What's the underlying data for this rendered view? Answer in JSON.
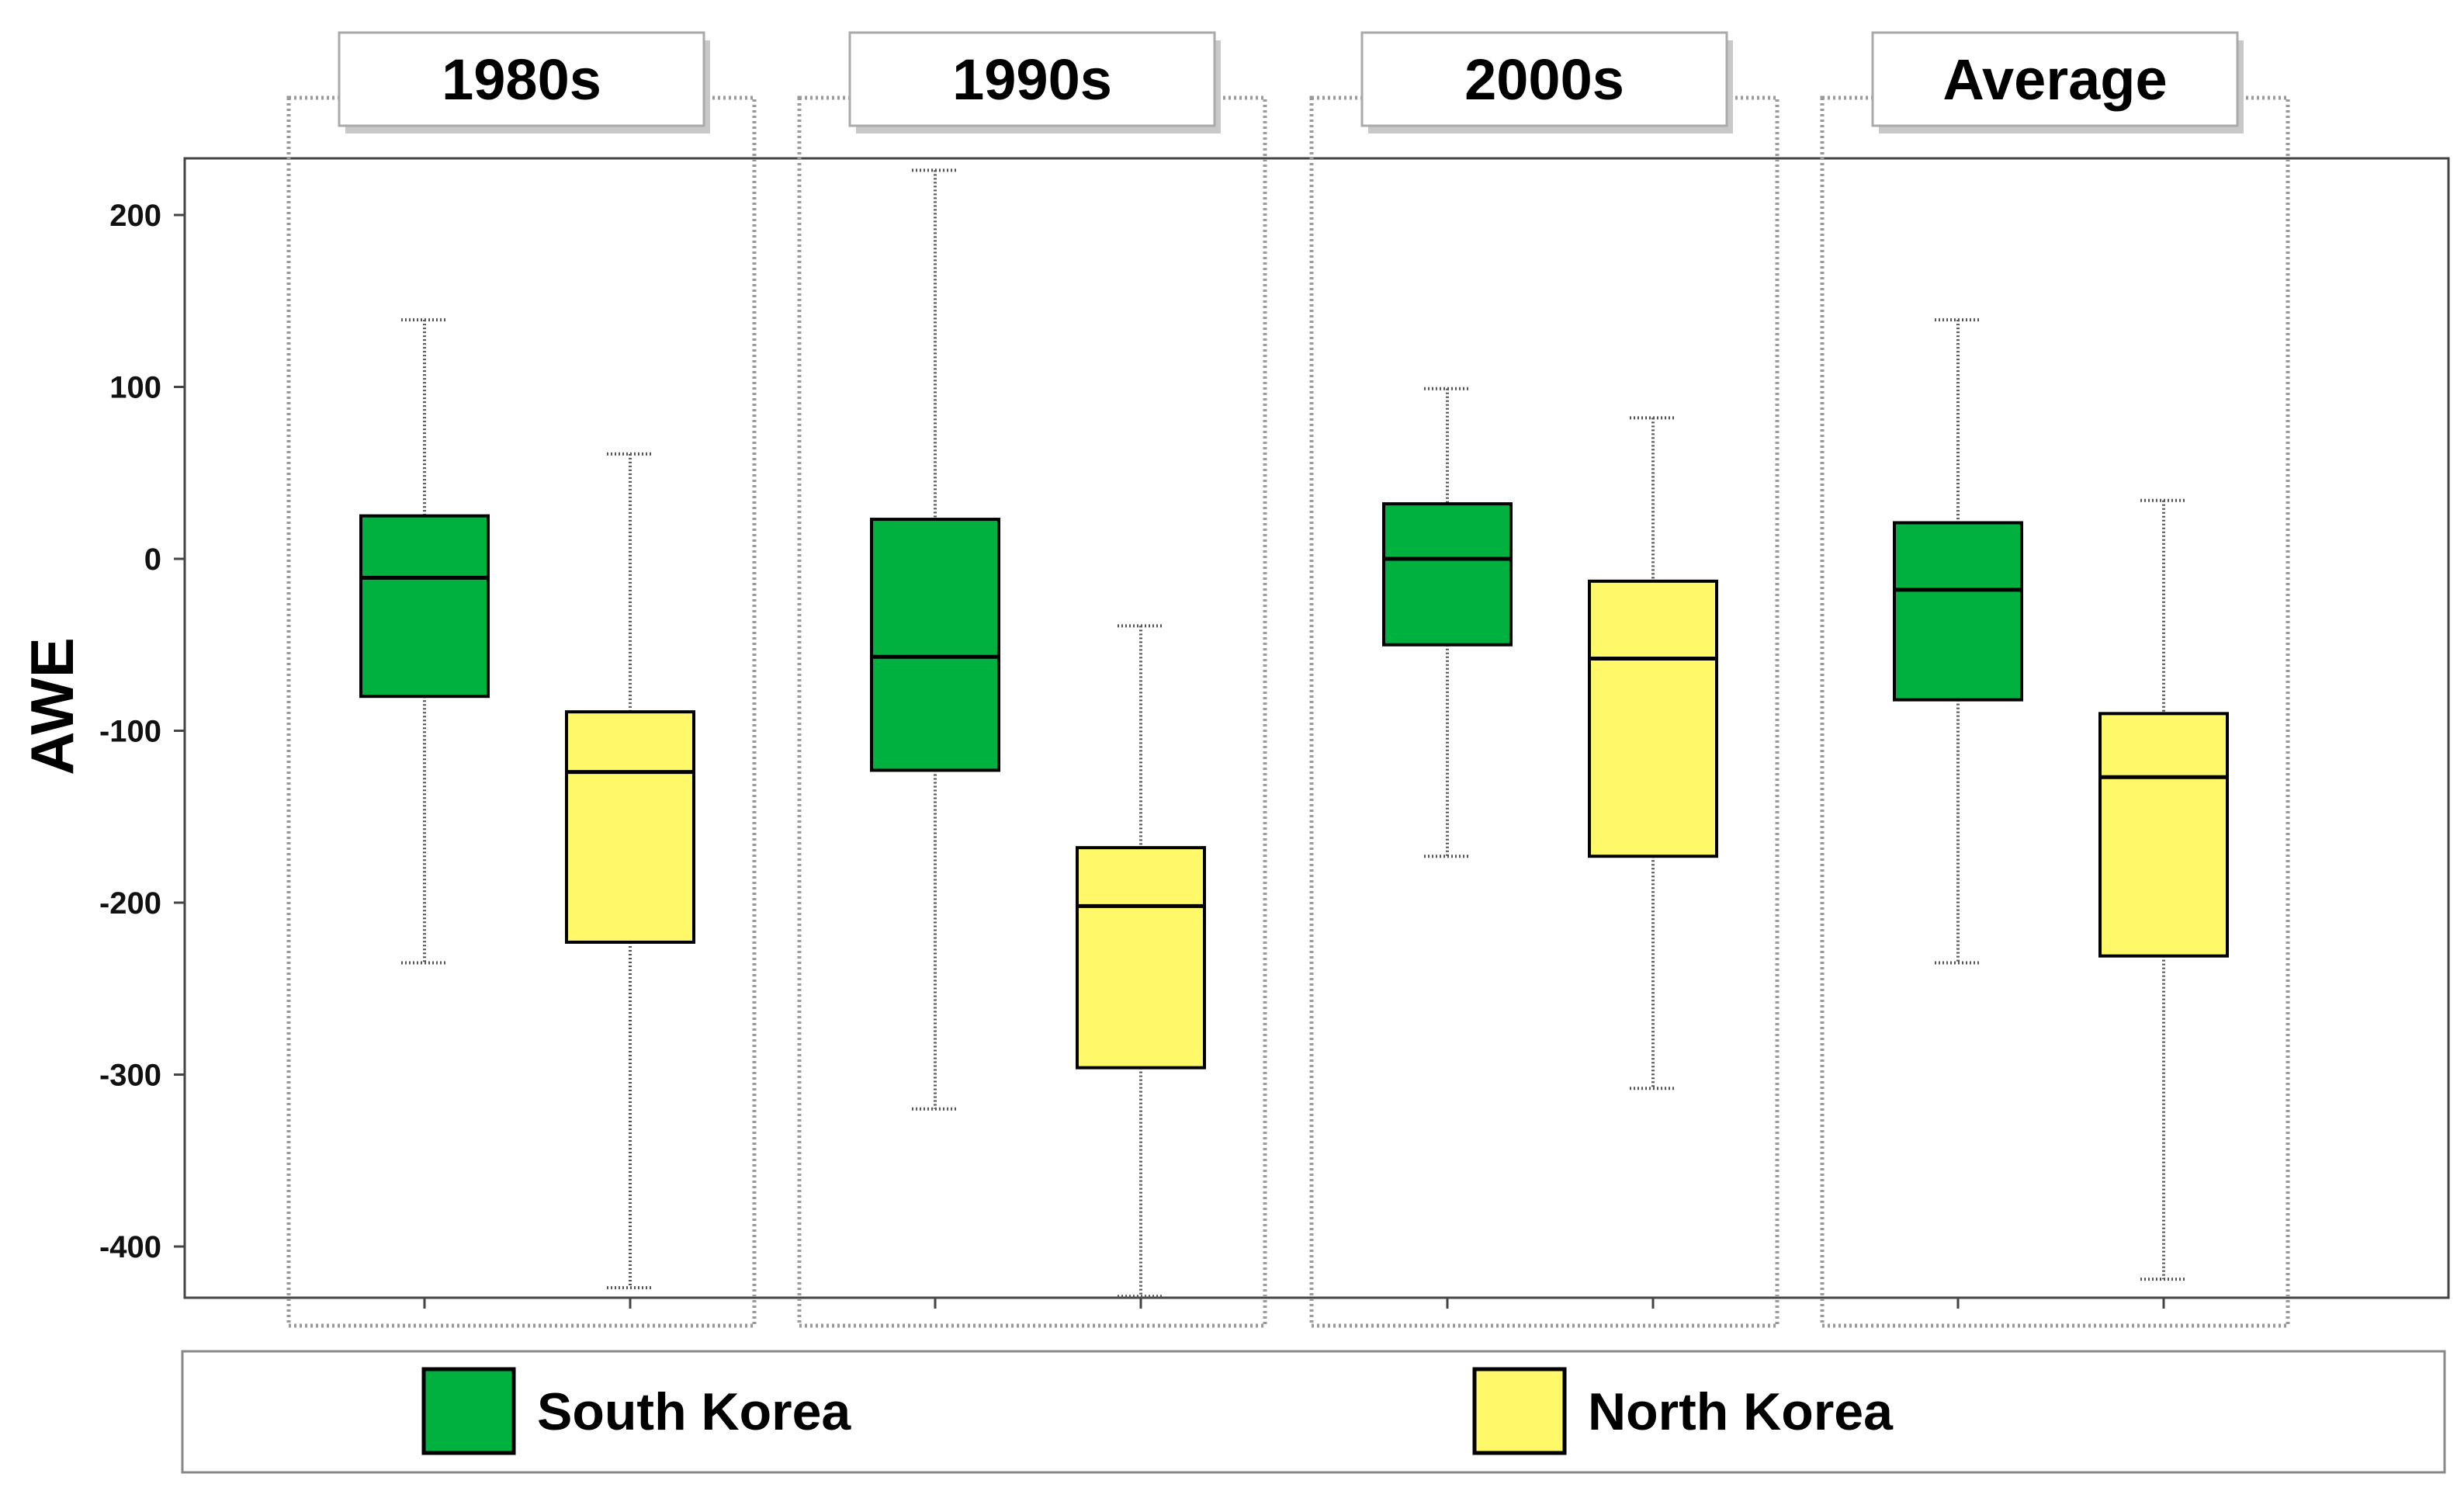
{
  "colors": {
    "south_korea": "#00b140",
    "north_korea": "#fff96a"
  },
  "chart_data": {
    "type": "box",
    "title": "",
    "xlabel": "",
    "ylabel": "AWE",
    "ylim": [
      -435,
      235
    ],
    "yticks": [
      200,
      100,
      0,
      -100,
      -200,
      -300,
      -400
    ],
    "ytick_labels": [
      "200",
      "100",
      "0",
      "-100",
      "-200",
      "-300",
      "-400"
    ],
    "grid": false,
    "legend_position": "bottom",
    "panels": [
      "1980s",
      "1990s",
      "2000s",
      "Average"
    ],
    "series": [
      {
        "name": "South Korea",
        "color": "#00b140",
        "boxes": [
          {
            "panel": "1980s",
            "whisker_low": -235,
            "q1": -80,
            "median": -11,
            "q3": 25,
            "whisker_high": 139
          },
          {
            "panel": "1990s",
            "whisker_low": -320,
            "q1": -123,
            "median": -57,
            "q3": 23,
            "whisker_high": 226
          },
          {
            "panel": "2000s",
            "whisker_low": -173,
            "q1": -50,
            "median": 0,
            "q3": 32,
            "whisker_high": 99
          },
          {
            "panel": "Average",
            "whisker_low": -235,
            "q1": -82,
            "median": -18,
            "q3": 21,
            "whisker_high": 139
          }
        ]
      },
      {
        "name": "North Korea",
        "color": "#fff96a",
        "boxes": [
          {
            "panel": "1980s",
            "whisker_low": -424,
            "q1": -223,
            "median": -124,
            "q3": -89,
            "whisker_high": 61
          },
          {
            "panel": "1990s",
            "whisker_low": -429,
            "q1": -296,
            "median": -202,
            "q3": -168,
            "whisker_high": -39
          },
          {
            "panel": "2000s",
            "whisker_low": -308,
            "q1": -173,
            "median": -58,
            "q3": -13,
            "whisker_high": 82
          },
          {
            "panel": "Average",
            "whisker_low": -419,
            "q1": -231,
            "median": -127,
            "q3": -90,
            "whisker_high": 34
          }
        ]
      }
    ]
  }
}
